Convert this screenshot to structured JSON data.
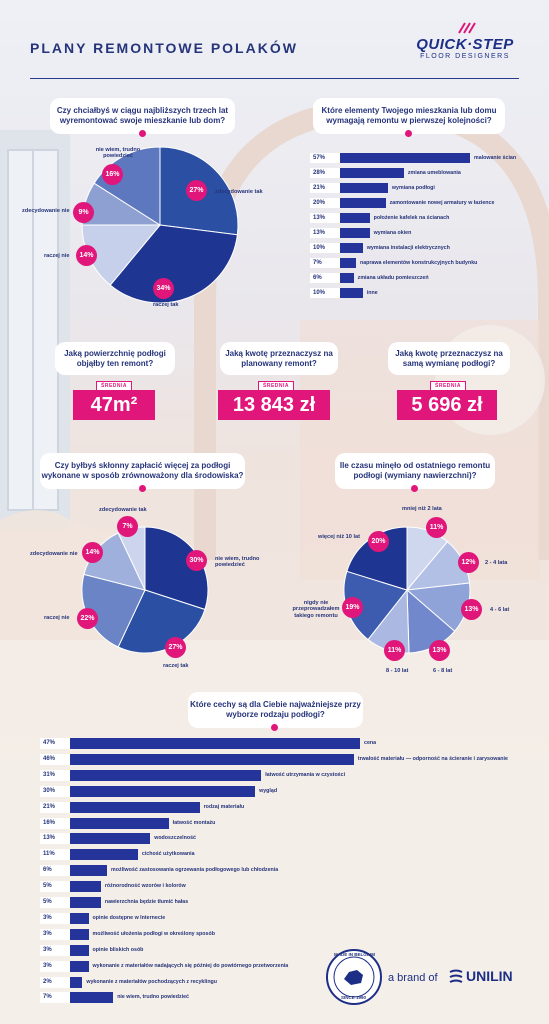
{
  "title": "PLANY REMONTOWE POLAKÓW",
  "brand": {
    "name": "QUICK·STEP",
    "tagline": "FLOOR DESIGNERS",
    "color": "#1d2e86",
    "accent": "#e0167a"
  },
  "stat_label": "ŚREDNIA",
  "q1": {
    "question": "Czy chciałbyś w ciągu najbliższych trzech lat wyremontować swoje mieszkanie lub dom?",
    "chart_data": {
      "type": "pie",
      "slices": [
        {
          "label": "zdecydowanie tak",
          "value": 27,
          "display": "27%",
          "color": "#2a4fa3"
        },
        {
          "label": "raczej tak",
          "value": 34,
          "display": "34%",
          "color": "#1f3592"
        },
        {
          "label": "raczej nie",
          "value": 14,
          "display": "14%",
          "color": "#c7d0ea"
        },
        {
          "label": "zdecydowanie nie",
          "value": 9,
          "display": "9%",
          "color": "#8ea0d2"
        },
        {
          "label": "nie wiem, trudno powiedzieć",
          "value": 16,
          "display": "16%",
          "color": "#5d78bf"
        }
      ]
    }
  },
  "q2": {
    "question": "Które elementy Twojego mieszkania lub domu wymagają remontu w pierwszej kolejności?",
    "chart_data": {
      "type": "bar",
      "orientation": "horizontal",
      "max": 57,
      "rows": [
        {
          "display": "57%",
          "value": 57,
          "label": "malowanie ścian"
        },
        {
          "display": "28%",
          "value": 28,
          "label": "zmiana umeblowania"
        },
        {
          "display": "21%",
          "value": 21,
          "label": "wymiana podłogi"
        },
        {
          "display": "20%",
          "value": 20,
          "label": "zamontowanie nowej armatury w łazience"
        },
        {
          "display": "13%",
          "value": 13,
          "label": "położenie kafelek na ścianach"
        },
        {
          "display": "13%",
          "value": 13,
          "label": "wymiana okien"
        },
        {
          "display": "10%",
          "value": 10,
          "label": "wymiana instalacji elektrycznych"
        },
        {
          "display": "7%",
          "value": 7,
          "label": "naprawa elementów konstrukcyjnych budynku"
        },
        {
          "display": "6%",
          "value": 6,
          "label": "zmiana układu pomieszczeń"
        },
        {
          "display": "10%",
          "value": 10,
          "label": "inne"
        }
      ]
    }
  },
  "stats": [
    {
      "question": "Jaką powierzchnię podłogi objąłby ten remont?",
      "value": "47m²"
    },
    {
      "question": "Jaką kwotę przeznaczysz na planowany remont?",
      "value": "13 843 zł"
    },
    {
      "question": "Jaką kwotę przeznaczysz na samą wymianę podłogi?",
      "value": "5 696 zł"
    }
  ],
  "q3": {
    "question": "Czy byłbyś skłonny zapłacić więcej za podłogi wykonane w sposób zrównoważony dla środowiska?",
    "chart_data": {
      "type": "pie",
      "slices": [
        {
          "label": "nie wiem, trudno powiedzieć",
          "value": 30,
          "display": "30%",
          "color": "#1f3592"
        },
        {
          "label": "raczej tak",
          "value": 27,
          "display": "27%",
          "color": "#2a4fa3"
        },
        {
          "label": "raczej nie",
          "value": 22,
          "display": "22%",
          "color": "#6a84c6"
        },
        {
          "label": "zdecydowanie nie",
          "value": 14,
          "display": "14%",
          "color": "#9fb0dc"
        },
        {
          "label": "zdecydowanie tak",
          "value": 7,
          "display": "7%",
          "color": "#cdd5ee"
        }
      ]
    }
  },
  "q4": {
    "question": "Ile czasu minęło od ostatniego remontu podłogi (wymiany nawierzchni)?",
    "chart_data": {
      "type": "pie",
      "slices": [
        {
          "label": "mniej niż 2 lata",
          "value": 11,
          "display": "11%",
          "color": "#cfd7ef"
        },
        {
          "label": "2 - 4 lata",
          "value": 12,
          "display": "12%",
          "color": "#b3c0e6"
        },
        {
          "label": "4 - 6 lat",
          "value": 13,
          "display": "13%",
          "color": "#8fa3d8"
        },
        {
          "label": "6 - 8 lat",
          "value": 13,
          "display": "13%",
          "color": "#7189cc"
        },
        {
          "label": "8 - 10 lat",
          "value": 11,
          "display": "11%",
          "color": "#aab8e2"
        },
        {
          "label": "nigdy nie przeprowadzałem takiego remontu",
          "value": 19,
          "display": "19%",
          "color": "#3d5cb0"
        },
        {
          "label": "więcej niż 10 lat",
          "value": 20,
          "display": "20%",
          "color": "#1f3592"
        }
      ]
    }
  },
  "q5": {
    "question": "Które cechy są dla Ciebie najważniejsze przy wyborze rodzaju podłogi?",
    "chart_data": {
      "type": "bar",
      "orientation": "horizontal",
      "max": 47,
      "rows": [
        {
          "display": "47%",
          "value": 47,
          "label": "cena"
        },
        {
          "display": "46%",
          "value": 46,
          "label": "trwałość materiału — odporność na ścieranie i zarysowanie"
        },
        {
          "display": "31%",
          "value": 31,
          "label": "łatwość utrzymania w czystości"
        },
        {
          "display": "30%",
          "value": 30,
          "label": "wygląd"
        },
        {
          "display": "21%",
          "value": 21,
          "label": "rodzaj materiału"
        },
        {
          "display": "16%",
          "value": 16,
          "label": "łatwość montażu"
        },
        {
          "display": "13%",
          "value": 13,
          "label": "wodoszczelność"
        },
        {
          "display": "11%",
          "value": 11,
          "label": "cichość użytkowania"
        },
        {
          "display": "6%",
          "value": 6,
          "label": "możliwość zastosowania ogrzewania podłogowego lub chłodzenia"
        },
        {
          "display": "5%",
          "value": 5,
          "label": "różnorodność wzorów i kolorów"
        },
        {
          "display": "5%",
          "value": 5,
          "label": "nawierzchnia będzie tłumić hałas"
        },
        {
          "display": "3%",
          "value": 3,
          "label": "opinie dostępne w Internecie"
        },
        {
          "display": "3%",
          "value": 3,
          "label": "możliwość ułożenia podłogi w określony sposób"
        },
        {
          "display": "3%",
          "value": 3,
          "label": "opinie bliskich osób"
        },
        {
          "display": "3%",
          "value": 3,
          "label": "wykonanie z materiałów nadających się później do powtórnego przetworzenia"
        },
        {
          "display": "2%",
          "value": 2,
          "label": "wykonanie z materiałów pochodzących z recyklingu"
        },
        {
          "display": "7%",
          "value": 7,
          "label": "nie wiem, trudno powiedzieć"
        }
      ]
    }
  },
  "footer": {
    "badge_top": "MADE IN BELGIUM",
    "badge_bottom": "SINCE 1990",
    "brand_of": "a brand of",
    "parent": "UNILIN"
  }
}
